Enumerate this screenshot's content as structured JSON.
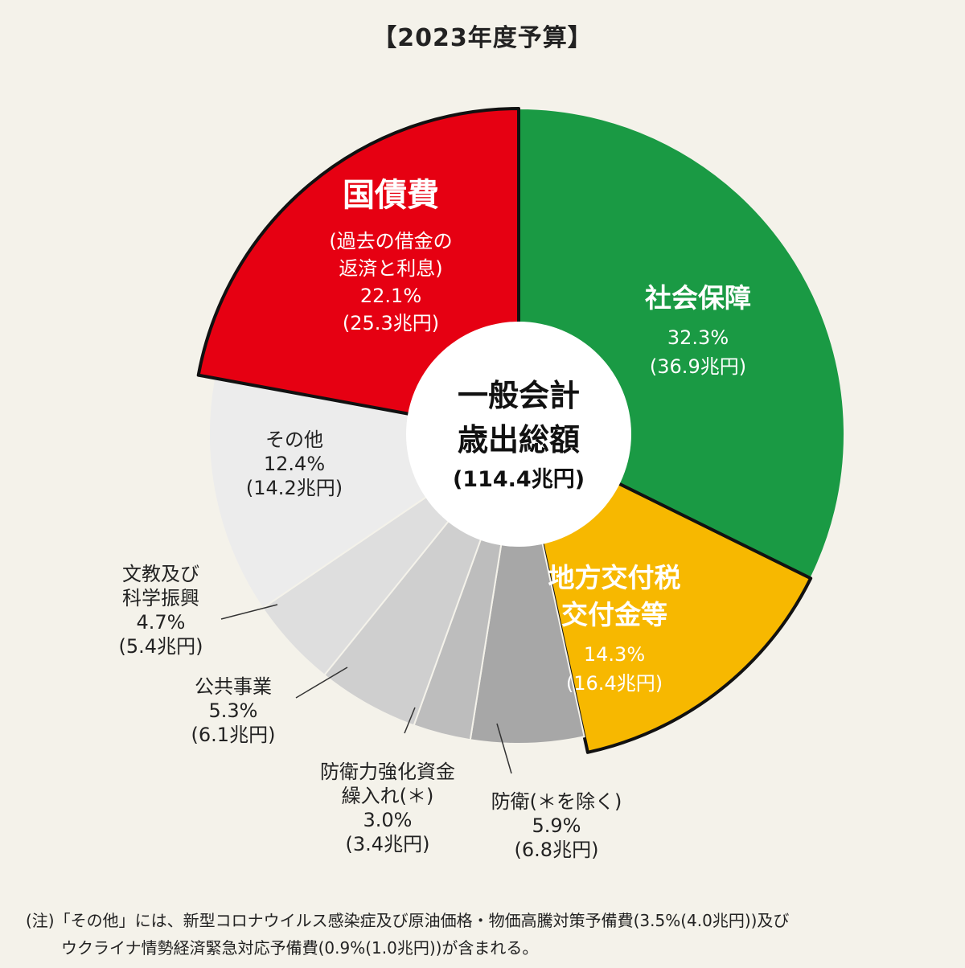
{
  "title": "【2023年度予算】",
  "center": {
    "line1": "一般会計",
    "line2": "歳出総額",
    "total": "(114.4兆円)"
  },
  "chart_data": {
    "type": "pie",
    "title": "【2023年度予算】",
    "unit": "兆円",
    "slices": [
      {
        "key": "social",
        "name_lines": [
          "社会保障"
        ],
        "percent": 32.3,
        "amount": 36.9,
        "pct_label": "32.3%",
        "amt_label": "(36.9兆円)",
        "color": "#1a9a44"
      },
      {
        "key": "local",
        "name_lines": [
          "地方交付税",
          "交付金等"
        ],
        "percent": 14.3,
        "amount": 16.4,
        "pct_label": "14.3%",
        "amt_label": "(16.4兆円)",
        "color": "#f7b800"
      },
      {
        "key": "defense",
        "name_lines": [
          "防衛(＊を除く)"
        ],
        "percent": 5.9,
        "amount": 6.8,
        "pct_label": "5.9%",
        "amt_label": "(6.8兆円)",
        "color": "#a7a7a7"
      },
      {
        "key": "defense_fund",
        "name_lines": [
          "防衛力強化資金",
          "繰入れ(＊)"
        ],
        "percent": 3.0,
        "amount": 3.4,
        "pct_label": "3.0%",
        "amt_label": "(3.4兆円)",
        "color": "#bdbdbd"
      },
      {
        "key": "public",
        "name_lines": [
          "公共事業"
        ],
        "percent": 5.3,
        "amount": 6.1,
        "pct_label": "5.3%",
        "amt_label": "(6.1兆円)",
        "color": "#cfcfcf"
      },
      {
        "key": "education",
        "name_lines": [
          "文教及び",
          "科学振興"
        ],
        "percent": 4.7,
        "amount": 5.4,
        "pct_label": "4.7%",
        "amt_label": "(5.4兆円)",
        "color": "#dedede"
      },
      {
        "key": "other",
        "name_lines": [
          "その他"
        ],
        "percent": 12.4,
        "amount": 14.2,
        "pct_label": "12.4%",
        "amt_label": "(14.2兆円)",
        "color": "#ececec"
      },
      {
        "key": "debt",
        "name_lines": [
          "国債費",
          "(過去の借金の",
          "返済と利息)"
        ],
        "percent": 22.1,
        "amount": 25.3,
        "pct_label": "22.1%",
        "amt_label": "(25.3兆円)",
        "color": "#e60012"
      }
    ]
  },
  "note": {
    "line1": "(注)「その他」には、新型コロナウイルス感染症及び原油価格・物価高騰対策予備費(3.5%(4.0兆円))及び",
    "line2": "ウクライナ情勢経済緊急対応予備費(0.9%(1.0兆円))が含まれる。"
  }
}
